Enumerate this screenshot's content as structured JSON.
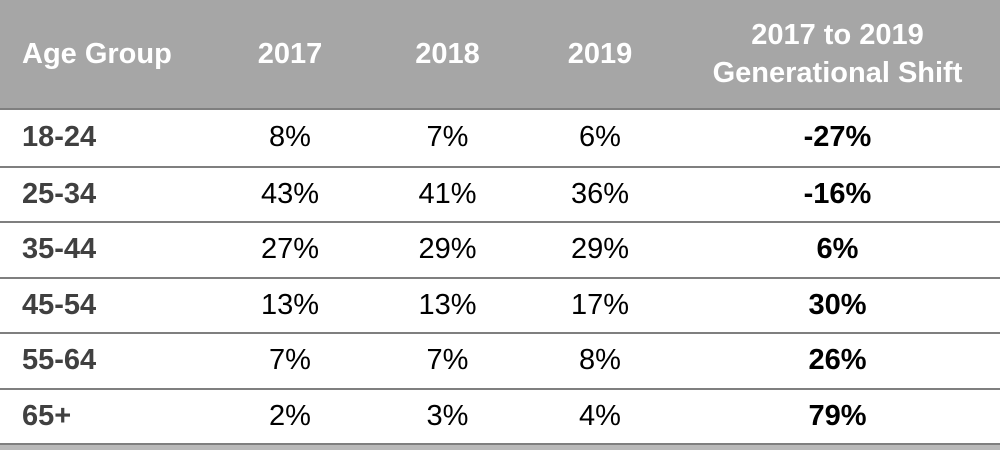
{
  "table": {
    "columns": [
      {
        "label": "Age Group"
      },
      {
        "label": "2017"
      },
      {
        "label": "2018"
      },
      {
        "label": "2019"
      },
      {
        "label": "2017 to 2019 Generational Shift",
        "lines": [
          "2017 to 2019",
          "Generational Shift"
        ]
      }
    ],
    "rows": [
      {
        "age_group": "18-24",
        "v2017": "8%",
        "v2018": "7%",
        "v2019": "6%",
        "shift": "-27%"
      },
      {
        "age_group": "25-34",
        "v2017": "43%",
        "v2018": "41%",
        "v2019": "36%",
        "shift": "-16%"
      },
      {
        "age_group": "35-44",
        "v2017": "27%",
        "v2018": "29%",
        "v2019": "29%",
        "shift": "6%"
      },
      {
        "age_group": "45-54",
        "v2017": "13%",
        "v2018": "13%",
        "v2019": "17%",
        "shift": "30%"
      },
      {
        "age_group": "55-64",
        "v2017": "7%",
        "v2018": "7%",
        "v2019": "8%",
        "shift": "26%"
      },
      {
        "age_group": "65+",
        "v2017": "2%",
        "v2018": "3%",
        "v2019": "4%",
        "shift": "79%"
      }
    ]
  },
  "colors": {
    "header_bg": "#A6A6A6",
    "header_text": "#FFFFFF",
    "row_divider": "#7F7F7F",
    "age_label_text": "#404040",
    "value_text": "#000000",
    "bottom_strip": "#B9B9B9"
  },
  "chart_data": {
    "type": "table",
    "title": "",
    "categories": [
      "18-24",
      "25-34",
      "35-44",
      "45-54",
      "55-64",
      "65+"
    ],
    "category_label": "Age Group",
    "series": [
      {
        "name": "2017",
        "values": [
          8,
          43,
          27,
          13,
          7,
          2
        ]
      },
      {
        "name": "2018",
        "values": [
          7,
          41,
          29,
          13,
          7,
          3
        ]
      },
      {
        "name": "2019",
        "values": [
          6,
          36,
          29,
          17,
          8,
          4
        ]
      },
      {
        "name": "2017 to 2019 Generational Shift",
        "values": [
          -27,
          -16,
          6,
          30,
          26,
          79
        ]
      }
    ],
    "value_unit": "%"
  }
}
